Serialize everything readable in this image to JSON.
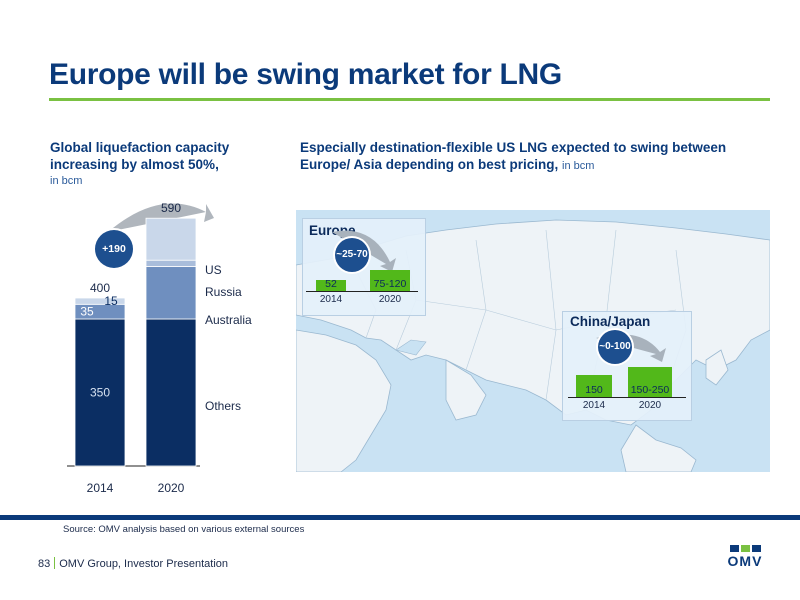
{
  "slide": {
    "title": "Europe will be swing market for LNG",
    "left_heading": "Global liquefaction capacity increasing by almost 50%,",
    "left_unit": "in bcm",
    "right_heading": "Especially destination-flexible US LNG expected to swing between Europe/ Asia depending on best pricing,",
    "right_unit": "in bcm",
    "source": "Source: OMV analysis based on various external sources",
    "page_number": "83",
    "footer_text": "OMV Group, Investor Presentation",
    "logo_text": "OMV"
  },
  "chart_data": [
    {
      "type": "bar",
      "stacked": true,
      "categories": [
        "2014",
        "2020"
      ],
      "series": [
        {
          "name": "Others",
          "values": [
            350,
            350
          ],
          "labels": [
            "350",
            ""
          ],
          "color": "#0b2e63"
        },
        {
          "name": "Australia",
          "values": [
            35,
            125
          ],
          "labels": [
            "35",
            ""
          ],
          "color": "#6f8fbf"
        },
        {
          "name": "Russia",
          "values": [
            0,
            15
          ],
          "labels": [
            "",
            ""
          ],
          "color": "#a9bddb"
        },
        {
          "name": "US",
          "values": [
            15,
            100
          ],
          "labels": [
            "15",
            ""
          ],
          "color": "#c9d7ea"
        }
      ],
      "totals": [
        "400",
        "590"
      ],
      "delta_label": "+190",
      "ylim": [
        0,
        640
      ]
    },
    {
      "type": "bar",
      "region": "Europe",
      "categories": [
        "2014",
        "2020"
      ],
      "value_labels": [
        "52",
        "75-120"
      ],
      "values": [
        52,
        97.5
      ],
      "swing_label": "~25-70",
      "color": "#52b81a"
    },
    {
      "type": "bar",
      "region": "China/Japan",
      "categories": [
        "2014",
        "2020"
      ],
      "value_labels": [
        "150",
        "150-250"
      ],
      "values": [
        150,
        200
      ],
      "swing_label": "~0-100",
      "color": "#52b81a"
    }
  ]
}
